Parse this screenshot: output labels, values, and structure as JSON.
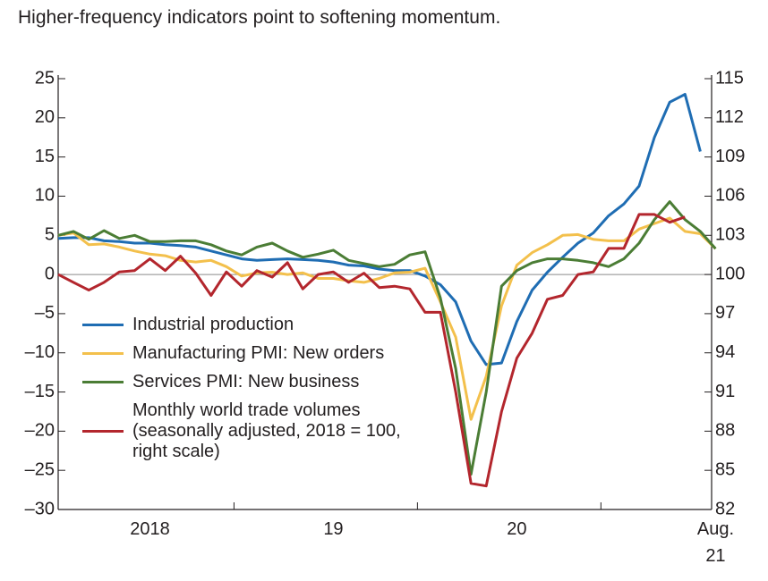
{
  "chart_data": {
    "type": "line",
    "title": "Higher-frequency indicators point to softening momentum.",
    "categories": [
      null,
      null,
      null,
      null,
      null,
      null,
      "2018",
      null,
      null,
      null,
      null,
      null,
      null,
      null,
      null,
      null,
      null,
      null,
      "19",
      null,
      null,
      null,
      null,
      null,
      null,
      null,
      null,
      null,
      null,
      null,
      "20",
      null,
      null,
      null,
      null,
      null,
      null,
      null,
      null,
      null,
      null,
      null,
      null,
      "Aug. 21"
    ],
    "series": [
      {
        "name": "Industrial production",
        "color": "#1f6db3",
        "values": [
          4.6,
          4.7,
          4.7,
          4.3,
          4.2,
          4.0,
          4.0,
          3.8,
          3.7,
          3.5,
          3.0,
          2.5,
          2.0,
          1.8,
          1.9,
          2.0,
          1.9,
          1.8,
          1.6,
          1.2,
          1.1,
          0.7,
          0.5,
          0.5,
          -0.2,
          -1.3,
          -3.5,
          -8.5,
          -11.5,
          -11.3,
          -6,
          -2,
          0.3,
          2.2,
          4,
          5.3,
          7.5,
          9,
          11.3,
          17.5,
          22,
          23,
          15.7,
          null
        ]
      },
      {
        "name": "Manufacturing PMI: New orders",
        "color": "#f3c04c",
        "values": [
          5.0,
          5.3,
          3.8,
          3.9,
          3.5,
          3.0,
          2.6,
          2.4,
          1.8,
          1.6,
          1.8,
          1.0,
          -0.2,
          0.2,
          0.3,
          0,
          0.2,
          -0.5,
          -0.5,
          -0.8,
          -1.0,
          -0.5,
          0.2,
          0.3,
          0.8,
          -3.5,
          -8,
          -18.5,
          -13,
          -4,
          1.2,
          2.8,
          3.8,
          5.0,
          5.1,
          4.5,
          4.3,
          4.3,
          5.8,
          6.5,
          7.2,
          5.5,
          5.2,
          3.3
        ]
      },
      {
        "name": "Services PMI: New business",
        "color": "#4b7d35",
        "values": [
          5.0,
          5.5,
          4.5,
          5.6,
          4.6,
          5.0,
          4.2,
          4.2,
          4.3,
          4.3,
          3.8,
          3.0,
          2.5,
          3.5,
          4.0,
          3.0,
          2.2,
          2.6,
          3.1,
          1.8,
          1.4,
          1.0,
          1.3,
          2.5,
          2.9,
          -3,
          -12,
          -25.5,
          -15,
          -1.5,
          0.5,
          1.5,
          2.0,
          2.0,
          1.8,
          1.5,
          1.0,
          2.0,
          4.0,
          7.0,
          9.3,
          7.0,
          5.5,
          3.3
        ]
      },
      {
        "name": "Monthly world trade volumes (seasonally adjusted, 2018 = 100, right scale)",
        "color": "#b3262d",
        "axis": "y2",
        "values": [
          100,
          99.4,
          98.8,
          99.4,
          100.2,
          100.3,
          101.2,
          100.3,
          101.4,
          100.1,
          98.4,
          100.2,
          99.1,
          100.3,
          99.8,
          100.9,
          98.9,
          100.0,
          100.2,
          99.4,
          100.1,
          99.0,
          99.1,
          98.9,
          97.1,
          97.1,
          91.0,
          84.0,
          83.8,
          89.5,
          93.6,
          95.5,
          98.1,
          98.4,
          100.0,
          100.2,
          102.0,
          102.0,
          104.6,
          104.6,
          104.0,
          104.4,
          null,
          null
        ]
      }
    ],
    "ylim": [
      -30,
      25
    ],
    "yticks": [
      {
        "value": -30,
        "label": "–30"
      },
      {
        "value": -25,
        "label": "–25"
      },
      {
        "value": -20,
        "label": "–20"
      },
      {
        "value": -15,
        "label": "–15"
      },
      {
        "value": -10,
        "label": "–10"
      },
      {
        "value": -5,
        "label": "–5"
      },
      0,
      5,
      10,
      15,
      20,
      25
    ],
    "y2lim": [
      82,
      115
    ],
    "y2ticks": [
      82,
      85,
      88,
      91,
      94,
      97,
      100,
      103,
      106,
      109,
      112,
      115
    ],
    "zero_line": true
  }
}
